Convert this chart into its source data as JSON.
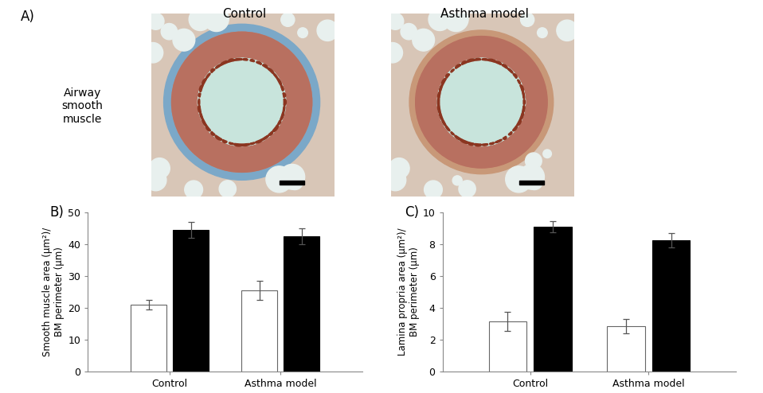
{
  "panel_B": {
    "groups": [
      "Control",
      "Asthma model"
    ],
    "white_bars": [
      21.0,
      25.5
    ],
    "black_bars": [
      44.5,
      42.5
    ],
    "white_errors": [
      1.5,
      3.0
    ],
    "black_errors": [
      2.5,
      2.5
    ],
    "ylabel": "Smooth muscle area (μm²)/\nBM perimeter (μm)",
    "ylim": [
      0,
      50
    ],
    "yticks": [
      0,
      10,
      20,
      30,
      40,
      50
    ],
    "label": "B)"
  },
  "panel_C": {
    "groups": [
      "Control",
      "Asthma model"
    ],
    "white_bars": [
      3.15,
      2.85
    ],
    "black_bars": [
      9.1,
      8.25
    ],
    "white_errors": [
      0.6,
      0.45
    ],
    "black_errors": [
      0.35,
      0.45
    ],
    "ylabel": "Lamina propria area (μm²)/\nBM perimeter (μm)",
    "ylim": [
      0,
      10
    ],
    "yticks": [
      0,
      2,
      4,
      6,
      8,
      10
    ],
    "label": "C)"
  },
  "panel_A": {
    "label": "A)",
    "col1_title": "Control",
    "col2_title": "Asthma model",
    "row_label": "Airway\nsmooth\nmuscle"
  },
  "bar_width": 0.32,
  "bar_gap": 0.06,
  "white_color": "#ffffff",
  "black_color": "#000000",
  "edge_color": "#666666",
  "background_color": "#ffffff",
  "fontsize_labels": 8.5,
  "fontsize_ticks": 9,
  "fontsize_panel": 12,
  "fontsize_title": 11
}
